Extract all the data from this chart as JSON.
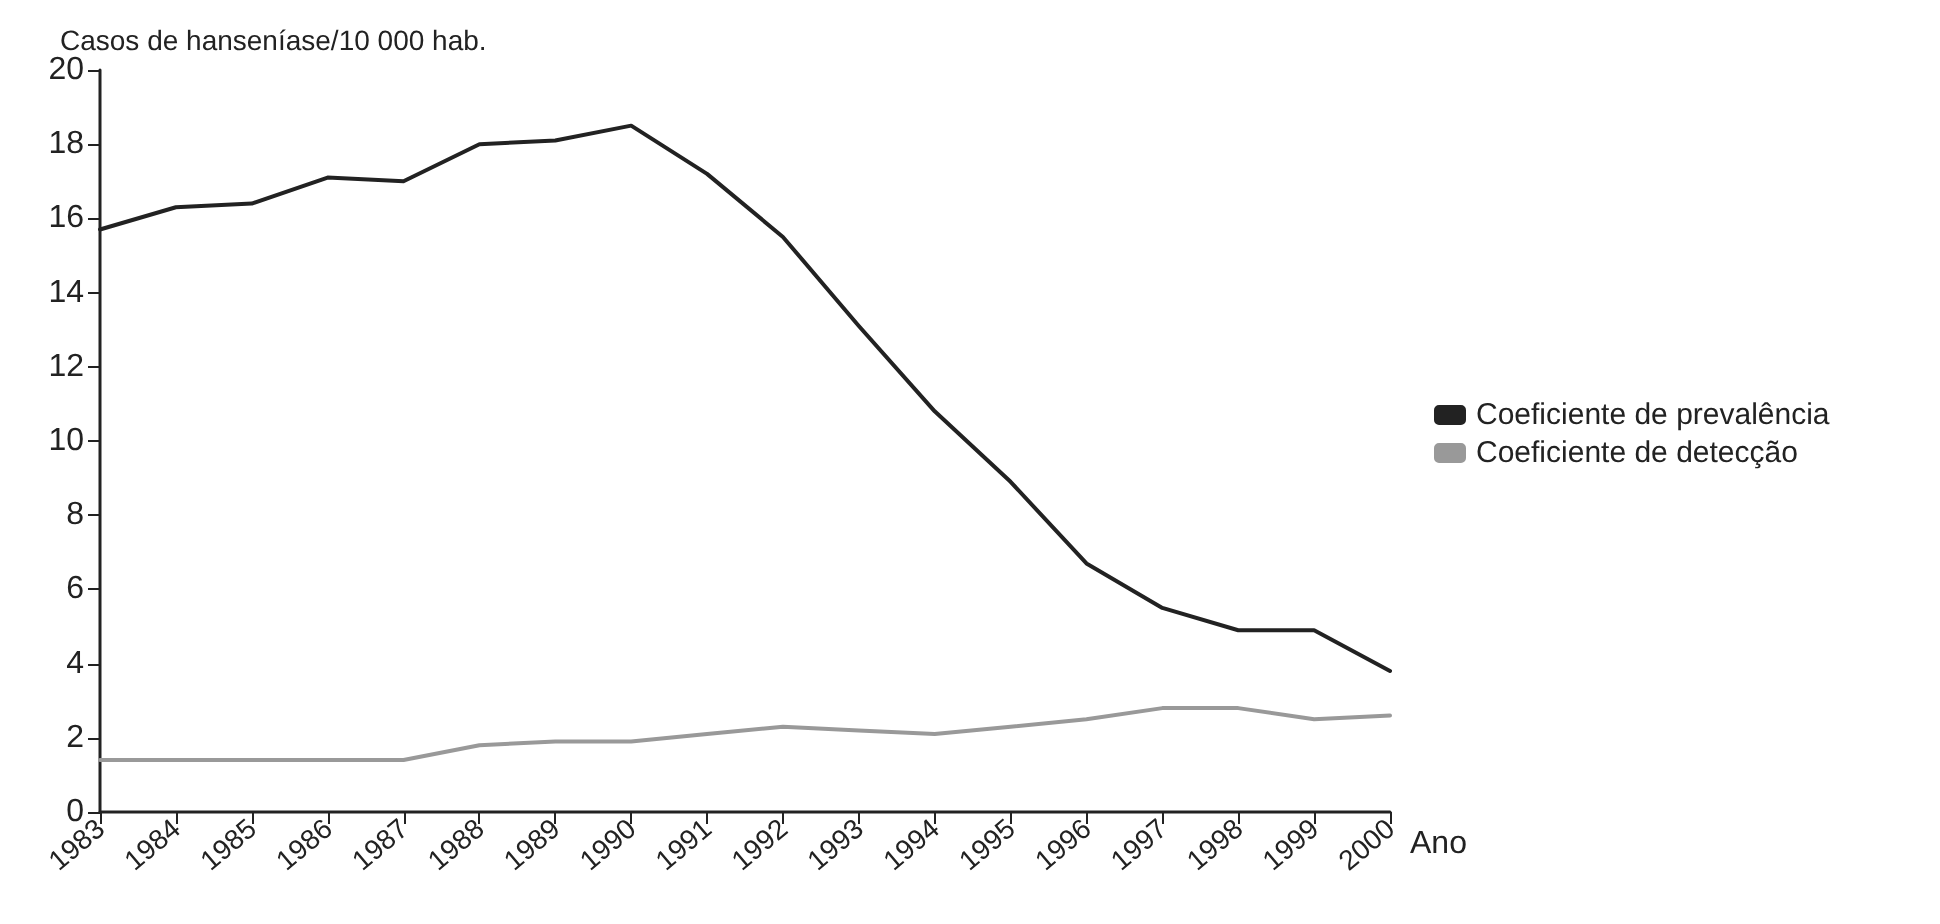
{
  "chart_data": {
    "type": "line",
    "ylabel": "Casos de hanseníase/10 000 hab.",
    "xlabel": "Ano",
    "categories": [
      "1983",
      "1984",
      "1985",
      "1986",
      "1987",
      "1988",
      "1989",
      "1990",
      "1991",
      "1992",
      "1993",
      "1994",
      "1995",
      "1996",
      "1997",
      "1998",
      "1999",
      "2000"
    ],
    "series": [
      {
        "name": "Coeficiente de prevalência",
        "color": "#222222",
        "values": [
          15.7,
          16.3,
          16.4,
          17.1,
          17.0,
          18.0,
          18.1,
          18.5,
          17.2,
          15.5,
          13.1,
          10.8,
          8.9,
          6.7,
          5.5,
          4.9,
          4.9,
          3.8
        ]
      },
      {
        "name": "Coeficiente de detecção",
        "color": "#999999",
        "values": [
          1.4,
          1.4,
          1.4,
          1.4,
          1.4,
          1.8,
          1.9,
          1.9,
          2.1,
          2.3,
          2.2,
          2.1,
          2.3,
          2.5,
          2.8,
          2.8,
          2.5,
          2.6
        ]
      }
    ],
    "ylim": [
      0,
      20
    ],
    "yticks": [
      0,
      2,
      4,
      6,
      8,
      10,
      12,
      14,
      16,
      18,
      20
    ],
    "grid": false,
    "legend": "right",
    "marker": "none",
    "line_style": "solid"
  }
}
